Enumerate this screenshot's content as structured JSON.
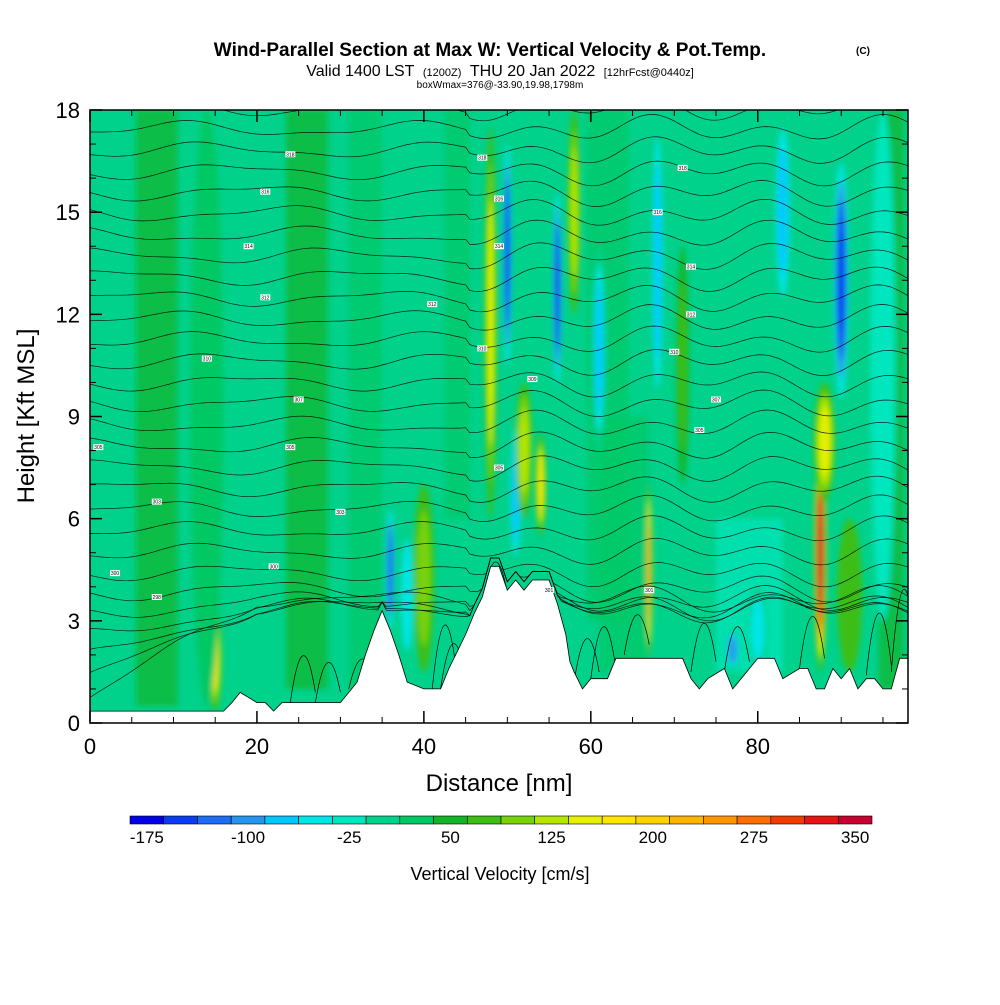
{
  "header": {
    "title": "Wind-Parallel Section at Max W: Vertical Velocity & Pot.Temp.",
    "copyright": "(C)",
    "subtitle_main_a": "Valid 1400 LST",
    "subtitle_small_a": "(1200Z)",
    "subtitle_main_b": "THU 20 Jan 2022",
    "subtitle_small_b": "[12hrFcst@0440z]",
    "box_info": "boxWmax=376@-33.90,19.98,1798m"
  },
  "colorbar": {
    "label": "Vertical Velocity [cm/s]",
    "colors": [
      "#0000e6",
      "#0a3cf2",
      "#1e6ef5",
      "#2896f0",
      "#00c8ff",
      "#00e6e6",
      "#00e6be",
      "#00d28c",
      "#00c864",
      "#14b428",
      "#3cbe14",
      "#78d20a",
      "#b4e600",
      "#e6f000",
      "#ffe600",
      "#ffd200",
      "#ffb400",
      "#ff9600",
      "#ff6e00",
      "#f03c00",
      "#e61414",
      "#c80032"
    ],
    "tick_labels": [
      "-175",
      "-100",
      "-25",
      "50",
      "125",
      "200",
      "275",
      "350"
    ],
    "tick_index": [
      1,
      4,
      7,
      10,
      13,
      16,
      19,
      22
    ]
  },
  "chart_data": {
    "type": "heatmap",
    "xlabel": "Distance [nm]",
    "ylabel": "Height [Kft MSL]",
    "xlim": [
      0,
      98
    ],
    "ylim": [
      0,
      18
    ],
    "x_ticks": [
      "0",
      "20",
      "40",
      "60",
      "80"
    ],
    "x_tick_values": [
      0,
      20,
      40,
      60,
      80
    ],
    "y_ticks": [
      "0",
      "3",
      "6",
      "9",
      "12",
      "15",
      "18"
    ],
    "y_tick_values": [
      0,
      3,
      6,
      9,
      12,
      15,
      18
    ],
    "terrain": [
      [
        0,
        0.35
      ],
      [
        3,
        0.35
      ],
      [
        6,
        0.35
      ],
      [
        9,
        0.35
      ],
      [
        12,
        0.35
      ],
      [
        14,
        0.35
      ],
      [
        16,
        0.35
      ],
      [
        17,
        0.6
      ],
      [
        18,
        0.9
      ],
      [
        20,
        0.6
      ],
      [
        21,
        0.6
      ],
      [
        22,
        0.35
      ],
      [
        23,
        0.6
      ],
      [
        27,
        0.6
      ],
      [
        30,
        0.6
      ],
      [
        31,
        0.9
      ],
      [
        32,
        1.2
      ],
      [
        33,
        2.0
      ],
      [
        34,
        2.7
      ],
      [
        35,
        3.3
      ],
      [
        36,
        2.7
      ],
      [
        37,
        2.0
      ],
      [
        38,
        1.2
      ],
      [
        40,
        1.0
      ],
      [
        42,
        1.0
      ],
      [
        43,
        1.6
      ],
      [
        44,
        2.1
      ],
      [
        45,
        2.6
      ],
      [
        46,
        3.2
      ],
      [
        47,
        3.7
      ],
      [
        48,
        4.6
      ],
      [
        49,
        4.6
      ],
      [
        50,
        3.9
      ],
      [
        51,
        4.2
      ],
      [
        52,
        3.9
      ],
      [
        53,
        4.2
      ],
      [
        55,
        4.2
      ],
      [
        56,
        3.5
      ],
      [
        57,
        2.6
      ],
      [
        57.5,
        1.8
      ],
      [
        58,
        1.5
      ],
      [
        59,
        1.0
      ],
      [
        60,
        1.3
      ],
      [
        62,
        1.3
      ],
      [
        63,
        1.9
      ],
      [
        66,
        1.9
      ],
      [
        69,
        1.9
      ],
      [
        71,
        1.9
      ],
      [
        72,
        1.3
      ],
      [
        73,
        1.0
      ],
      [
        74,
        1.3
      ],
      [
        76,
        1.6
      ],
      [
        77,
        1.0
      ],
      [
        78,
        1.3
      ],
      [
        80,
        1.9
      ],
      [
        82,
        1.9
      ],
      [
        83,
        1.3
      ],
      [
        85,
        1.6
      ],
      [
        86,
        1.6
      ],
      [
        87,
        1.0
      ],
      [
        88,
        1.0
      ],
      [
        89,
        1.6
      ],
      [
        90,
        1.3
      ],
      [
        91,
        1.6
      ],
      [
        92,
        1.0
      ],
      [
        93,
        1.3
      ],
      [
        94,
        1.3
      ],
      [
        95,
        1.0
      ],
      [
        96,
        1.0
      ],
      [
        97,
        1.9
      ],
      [
        98,
        1.9
      ]
    ],
    "features": [
      {
        "x": 15,
        "y0": 0.35,
        "y1": 3.5,
        "w": 1.5,
        "v": 150
      },
      {
        "x": 14,
        "y0": 0.5,
        "y1": 18,
        "w": 4,
        "v": 20
      },
      {
        "x": 36,
        "y0": 2.5,
        "y1": 6.5,
        "w": 1.2,
        "v": -150
      },
      {
        "x": 38,
        "y0": 1.5,
        "y1": 6,
        "w": 2,
        "v": -60
      },
      {
        "x": 40,
        "y0": 1.5,
        "y1": 7,
        "w": 2.5,
        "v": 80
      },
      {
        "x": 48,
        "y0": 6,
        "y1": 17.5,
        "w": 1.4,
        "v": 130
      },
      {
        "x": 50,
        "y0": 10,
        "y1": 17.5,
        "w": 1.2,
        "v": -175
      },
      {
        "x": 51,
        "y0": 4.5,
        "y1": 9,
        "w": 1.5,
        "v": -100
      },
      {
        "x": 54,
        "y0": 5.5,
        "y1": 8.5,
        "w": 1.2,
        "v": 160
      },
      {
        "x": 52,
        "y0": 6,
        "y1": 10,
        "w": 2,
        "v": 110
      },
      {
        "x": 56,
        "y0": 9.5,
        "y1": 16,
        "w": 1.2,
        "v": -175
      },
      {
        "x": 58,
        "y0": 12,
        "y1": 18,
        "w": 1.5,
        "v": 120
      },
      {
        "x": 61,
        "y0": 8,
        "y1": 14,
        "w": 1.5,
        "v": -100
      },
      {
        "x": 67,
        "y0": 1.9,
        "y1": 7,
        "w": 0.7,
        "v": 225
      },
      {
        "x": 68,
        "y0": 9,
        "y1": 18,
        "w": 1.5,
        "v": -100
      },
      {
        "x": 71,
        "y0": 7,
        "y1": 14,
        "w": 1.5,
        "v": 60
      },
      {
        "x": 77,
        "y0": 1.5,
        "y1": 2.8,
        "w": 1.8,
        "v": -120
      },
      {
        "x": 80,
        "y0": 1.5,
        "y1": 4,
        "w": 2.5,
        "v": -60
      },
      {
        "x": 83,
        "y0": 12,
        "y1": 18,
        "w": 2,
        "v": -100
      },
      {
        "x": 87.5,
        "y0": 1.5,
        "y1": 8.5,
        "w": 1.4,
        "v": 360
      },
      {
        "x": 88,
        "y0": 6.5,
        "y1": 10,
        "w": 2.5,
        "v": 140
      },
      {
        "x": 90,
        "y0": 9,
        "y1": 17,
        "w": 2,
        "v": -175
      },
      {
        "x": 91,
        "y0": 1.5,
        "y1": 6,
        "w": 3,
        "v": 50
      },
      {
        "x": 95,
        "y0": 3,
        "y1": 18,
        "w": 3,
        "v": -40
      }
    ],
    "contour_labels": [
      {
        "x": 1,
        "y": 8.1,
        "text": "305"
      },
      {
        "x": 8,
        "y": 6.5,
        "text": "303"
      },
      {
        "x": 3,
        "y": 4.4,
        "text": "300"
      },
      {
        "x": 8,
        "y": 3.7,
        "text": "298"
      },
      {
        "x": 14,
        "y": 10.7,
        "text": "310"
      },
      {
        "x": 19,
        "y": 14.0,
        "text": "314"
      },
      {
        "x": 21,
        "y": 15.6,
        "text": "316"
      },
      {
        "x": 24,
        "y": 16.7,
        "text": "318"
      },
      {
        "x": 21,
        "y": 12.5,
        "text": "312"
      },
      {
        "x": 25,
        "y": 9.5,
        "text": "307"
      },
      {
        "x": 24,
        "y": 8.1,
        "text": "305"
      },
      {
        "x": 22,
        "y": 4.6,
        "text": "300"
      },
      {
        "x": 30,
        "y": 6.2,
        "text": "303"
      },
      {
        "x": 41,
        "y": 12.3,
        "text": "312"
      },
      {
        "x": 47,
        "y": 16.6,
        "text": "318"
      },
      {
        "x": 49,
        "y": 15.4,
        "text": "316"
      },
      {
        "x": 49,
        "y": 14.0,
        "text": "314"
      },
      {
        "x": 47,
        "y": 11.0,
        "text": "310"
      },
      {
        "x": 53,
        "y": 10.1,
        "text": "309"
      },
      {
        "x": 49,
        "y": 7.5,
        "text": "305"
      },
      {
        "x": 55,
        "y": 3.9,
        "text": "301"
      },
      {
        "x": 67,
        "y": 3.9,
        "text": "301"
      },
      {
        "x": 68,
        "y": 15.0,
        "text": "316"
      },
      {
        "x": 71,
        "y": 16.3,
        "text": "318"
      },
      {
        "x": 72,
        "y": 13.4,
        "text": "314"
      },
      {
        "x": 72,
        "y": 12.0,
        "text": "312"
      },
      {
        "x": 70,
        "y": 10.9,
        "text": "310"
      },
      {
        "x": 75,
        "y": 9.5,
        "text": "307"
      },
      {
        "x": 73,
        "y": 8.6,
        "text": "305"
      }
    ]
  }
}
